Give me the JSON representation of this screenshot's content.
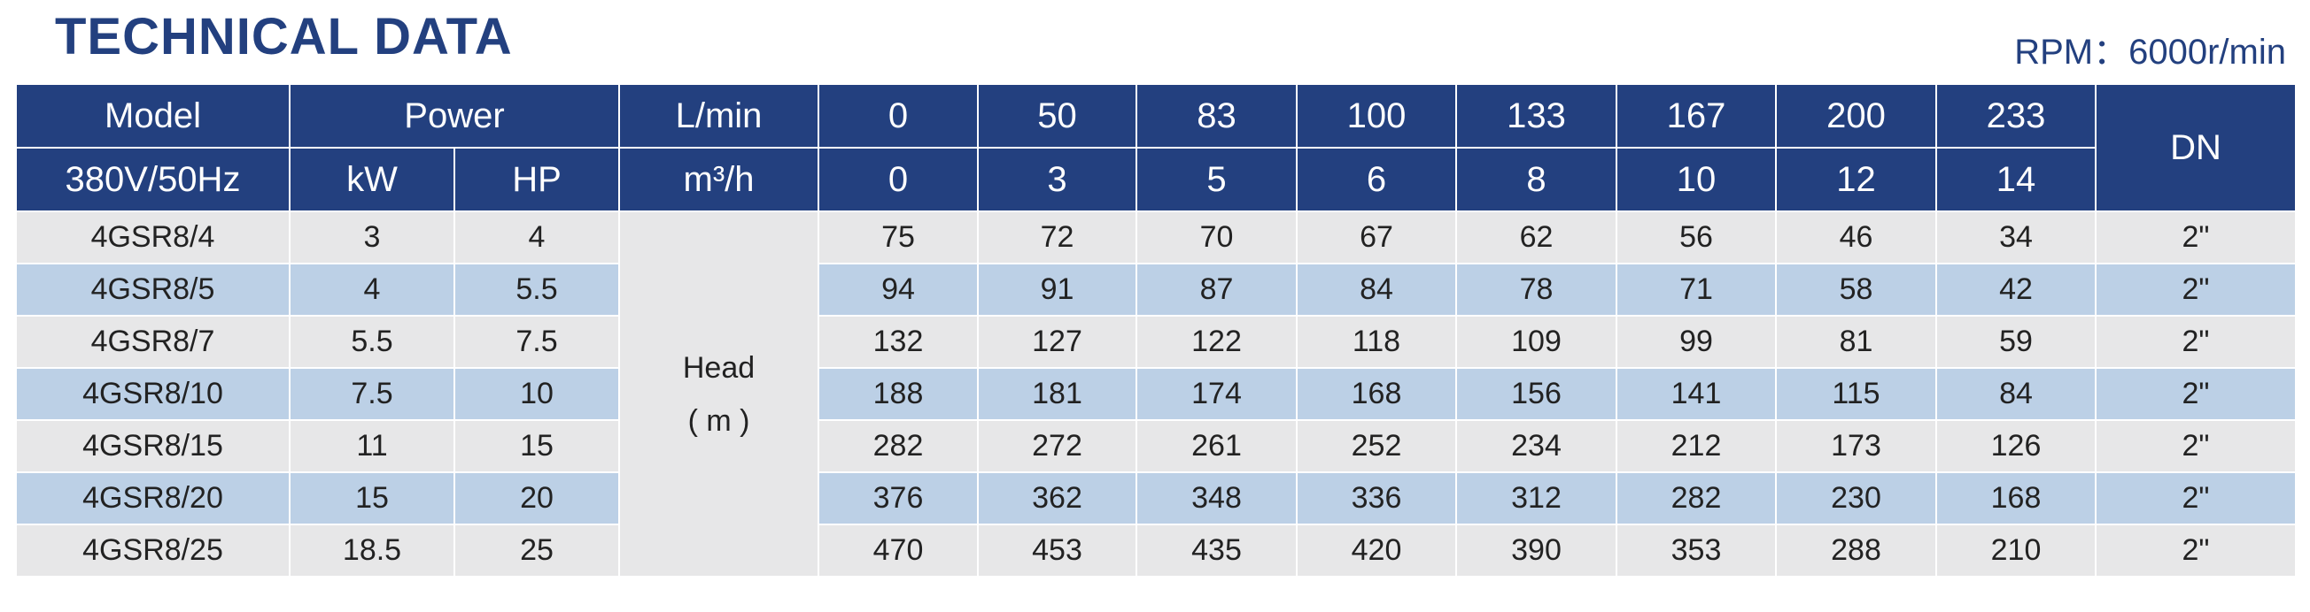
{
  "header": {
    "title": "TECHNICAL DATA",
    "rpm": "RPM：6000r/min"
  },
  "table": {
    "header_row1": [
      "Model",
      "Power",
      "L/min",
      "0",
      "50",
      "83",
      "100",
      "133",
      "167",
      "200",
      "233",
      "DN"
    ],
    "header_row2": [
      "380V/50Hz",
      "kW",
      "HP",
      "m³/h",
      "0",
      "3",
      "5",
      "6",
      "8",
      "10",
      "12",
      "14"
    ],
    "head_label": [
      "Head",
      "( m )"
    ],
    "rows": [
      [
        "4GSR8/4",
        "3",
        "4",
        "75",
        "72",
        "70",
        "67",
        "62",
        "56",
        "46",
        "34",
        "2\""
      ],
      [
        "4GSR8/5",
        "4",
        "5.5",
        "94",
        "91",
        "87",
        "84",
        "78",
        "71",
        "58",
        "42",
        "2\""
      ],
      [
        "4GSR8/7",
        "5.5",
        "7.5",
        "132",
        "127",
        "122",
        "118",
        "109",
        "99",
        "81",
        "59",
        "2\""
      ],
      [
        "4GSR8/10",
        "7.5",
        "10",
        "188",
        "181",
        "174",
        "168",
        "156",
        "141",
        "115",
        "84",
        "2\""
      ],
      [
        "4GSR8/15",
        "11",
        "15",
        "282",
        "272",
        "261",
        "252",
        "234",
        "212",
        "173",
        "126",
        "2\""
      ],
      [
        "4GSR8/20",
        "15",
        "20",
        "376",
        "362",
        "348",
        "336",
        "312",
        "282",
        "230",
        "168",
        "2\""
      ],
      [
        "4GSR8/25",
        "18.5",
        "25",
        "470",
        "453",
        "435",
        "420",
        "390",
        "353",
        "288",
        "210",
        "2\""
      ]
    ]
  }
}
